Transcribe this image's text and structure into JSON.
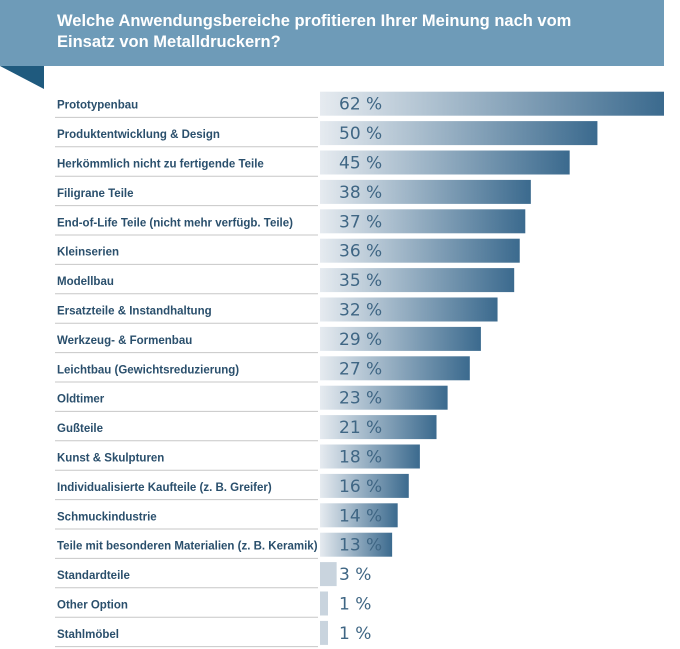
{
  "title": "Welche Anwendungsbereiche profitieren Ihrer Meinung nach vom Einsatz von Metalldruckern?",
  "colors": {
    "banner": "#6e9bb8",
    "fold": "#1f5a7e",
    "bar_light": "#e6ebf0",
    "bar_dark": "#3b6a8e",
    "label": "#2a4f6c",
    "value": "#3f6684"
  },
  "chart_data": {
    "type": "bar",
    "orientation": "horizontal",
    "categories": [
      "Prototypenbau",
      "Produktentwicklung & Design",
      "Herkömmlich nicht zu fertigende Teile",
      "Filigrane Teile",
      "End-of-Life Teile (nicht mehr verfügb. Teile)",
      "Kleinserien",
      "Modellbau",
      "Ersatzteile & Instandhaltung",
      "Werkzeug- & Formenbau",
      "Leichtbau (Gewichtsreduzierung)",
      "Oldtimer",
      "Gußteile",
      "Kunst & Skulpturen",
      "Individualisierte Kaufteile (z. B. Greifer)",
      "Schmuckindustrie",
      "Teile mit besonderen Materialien (z. B. Keramik)",
      "Standardteile",
      "Other Option",
      "Stahlmöbel"
    ],
    "values": [
      62,
      50,
      45,
      38,
      37,
      36,
      35,
      32,
      29,
      27,
      23,
      21,
      18,
      16,
      14,
      13,
      3,
      1,
      1
    ],
    "value_labels": [
      "62 %",
      "50 %",
      "45 %",
      "38 %",
      "37 %",
      "36 %",
      "35 %",
      "32 %",
      "29 %",
      "27 %",
      "23 %",
      "21 %",
      "18 %",
      "16 %",
      "14 %",
      "13 %",
      "3 %",
      "1 %",
      "1 %"
    ],
    "unit": "%",
    "xlim": [
      0,
      62
    ],
    "title": "Welche Anwendungsbereiche profitieren Ihrer Meinung nach vom Einsatz von Metalldruckern?"
  }
}
